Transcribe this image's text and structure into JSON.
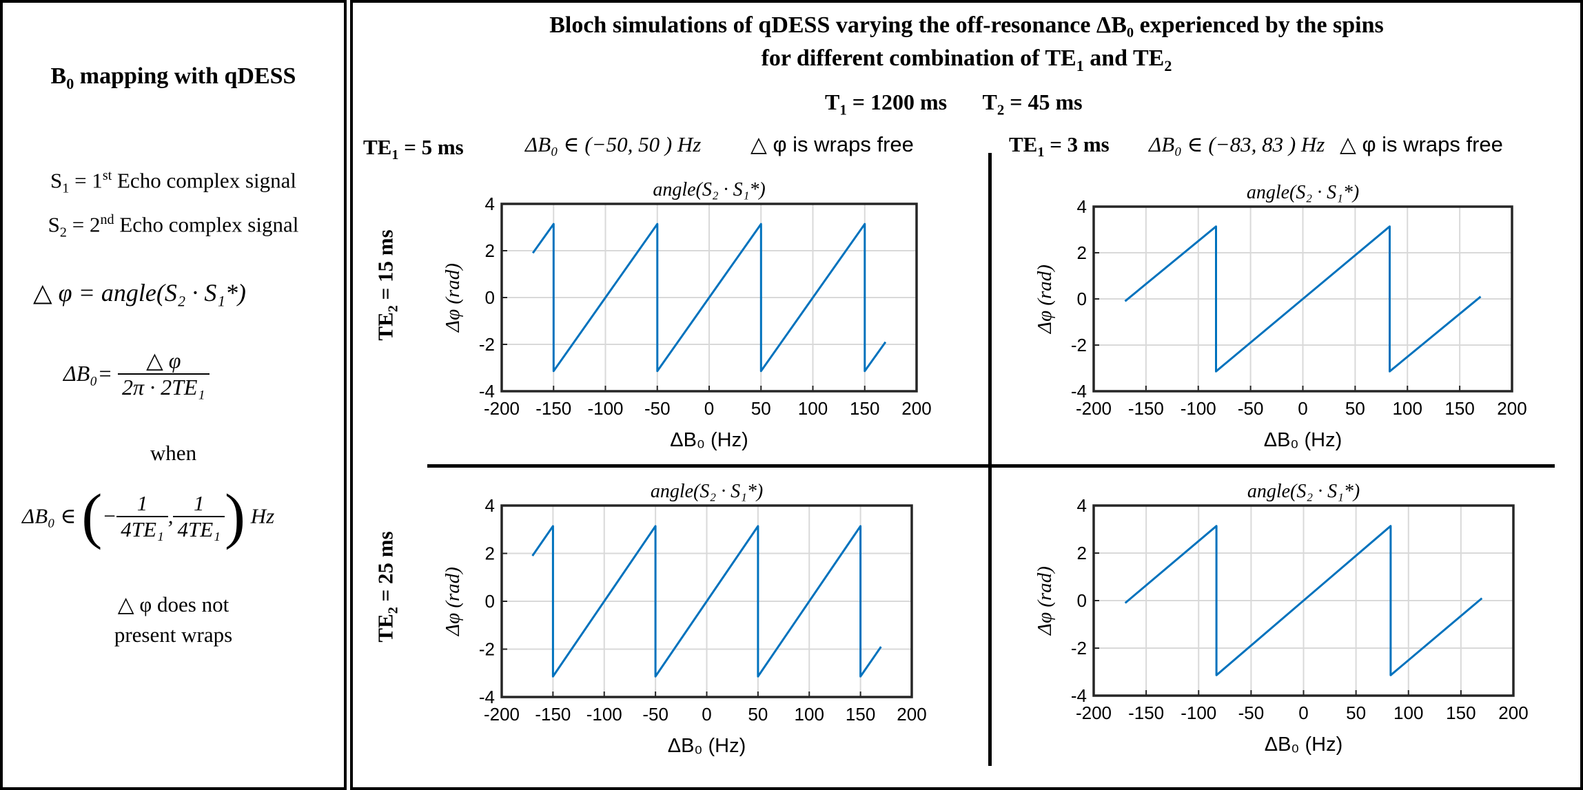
{
  "left": {
    "title_pre": "B",
    "title_sub": "0",
    "title_post": " mapping with qDESS",
    "s1_pre": "S",
    "s1_sub": "1",
    "s1_mid": " = 1",
    "s1_sup": "st",
    "s1_post": " Echo complex signal",
    "s2_pre": "S",
    "s2_sub": "2",
    "s2_mid": " = 2",
    "s2_sup": "nd",
    "s2_post": " Echo complex signal",
    "eq1": "△ φ = angle(S₂ · S₁*)",
    "eq2_lhs": "ΔB₀=",
    "eq2_num": "△ φ",
    "eq2_den": "2π · 2TE₁",
    "when": "when",
    "eq3_lhs": "ΔB₀  ∈",
    "eq3_f1_num": "1",
    "eq3_f1_den": "4TE₁",
    "eq3_f2_num": "1",
    "eq3_f2_den": "4TE₁",
    "eq3_unit": "Hz",
    "note_line1": "△ φ  does not",
    "note_line2": "present wraps"
  },
  "right": {
    "title_line1": "Bloch simulations of qDESS varying the off-resonance ΔB₀ experienced by the spins",
    "title_line2_pre": "for different combination of TE",
    "title_line2_sub1": "1",
    "title_line2_mid": " and TE",
    "title_line2_sub2": "2",
    "params_t1_pre": "T",
    "params_t1_sub": "1",
    "params_t1_post": " = 1200 ms",
    "params_t2_pre": "T",
    "params_t2_sub": "2",
    "params_t2_post": " = 45 ms",
    "col1_te_pre": "TE",
    "col1_te_sub": "1",
    "col1_te_post": " = 5 ms",
    "col1_range": "ΔB₀ ∈ (−50, 50 ) Hz",
    "col1_note": "△ φ is wraps free",
    "col2_te_pre": "TE",
    "col2_te_sub": "1",
    "col2_te_post": " = 3 ms",
    "col2_range": "ΔB₀ ∈ (−83, 83 ) Hz",
    "col2_note": "△ φ is wraps free",
    "row1_label_pre": "TE",
    "row1_label_sub": "2",
    "row1_label_post": " = 15 ms",
    "row2_label_pre": "TE",
    "row2_label_sub": "2",
    "row2_label_post": " = 25 ms"
  },
  "colors": {
    "line": "#0072BD",
    "grid": "#d9d9d9",
    "axis": "#262626"
  },
  "chart_data": [
    {
      "type": "line",
      "id": "te1_5_te2_15",
      "title": "angle(S₂ · S₁*)",
      "xlabel": "ΔB₀ (Hz)",
      "ylabel": "Δφ (rad)",
      "xlim": [
        -200,
        200
      ],
      "ylim": [
        -4,
        4
      ],
      "xticks": [
        -200,
        -150,
        -100,
        -50,
        0,
        50,
        100,
        150,
        200
      ],
      "yticks": [
        -4,
        -2,
        0,
        2,
        4
      ],
      "grid": true,
      "series": [
        {
          "name": "Δφ",
          "x": [
            -170,
            -150,
            -150,
            -50,
            -50,
            50,
            50,
            150,
            150,
            170
          ],
          "y": [
            1.9,
            3.14,
            -3.14,
            3.14,
            -3.14,
            3.14,
            -3.14,
            3.14,
            -3.14,
            -1.9
          ]
        }
      ]
    },
    {
      "type": "line",
      "id": "te1_3_te2_15",
      "title": "angle(S₂ · S₁*)",
      "xlabel": "ΔB₀ (Hz)",
      "ylabel": "Δφ (rad)",
      "xlim": [
        -200,
        200
      ],
      "ylim": [
        -4,
        4
      ],
      "xticks": [
        -200,
        -150,
        -100,
        -50,
        0,
        50,
        100,
        150,
        200
      ],
      "yticks": [
        -4,
        -2,
        0,
        2,
        4
      ],
      "grid": true,
      "series": [
        {
          "name": "Δφ",
          "x": [
            -170,
            -83,
            -83,
            83,
            83,
            170
          ],
          "y": [
            -0.1,
            3.14,
            -3.14,
            3.14,
            -3.14,
            0.1
          ]
        }
      ]
    },
    {
      "type": "line",
      "id": "te1_5_te2_25",
      "title": "angle(S₂ · S₁*)",
      "xlabel": "ΔB₀ (Hz)",
      "ylabel": "Δφ (rad)",
      "xlim": [
        -200,
        200
      ],
      "ylim": [
        -4,
        4
      ],
      "xticks": [
        -200,
        -150,
        -100,
        -50,
        0,
        50,
        100,
        150,
        200
      ],
      "yticks": [
        -4,
        -2,
        0,
        2,
        4
      ],
      "grid": true,
      "series": [
        {
          "name": "Δφ",
          "x": [
            -170,
            -150,
            -150,
            -50,
            -50,
            50,
            50,
            150,
            150,
            170
          ],
          "y": [
            1.9,
            3.14,
            -3.14,
            3.14,
            -3.14,
            3.14,
            -3.14,
            3.14,
            -3.14,
            -1.9
          ]
        }
      ]
    },
    {
      "type": "line",
      "id": "te1_3_te2_25",
      "title": "angle(S₂ · S₁*)",
      "xlabel": "ΔB₀ (Hz)",
      "ylabel": "Δφ (rad)",
      "xlim": [
        -200,
        200
      ],
      "ylim": [
        -4,
        4
      ],
      "xticks": [
        -200,
        -150,
        -100,
        -50,
        0,
        50,
        100,
        150,
        200
      ],
      "yticks": [
        -4,
        -2,
        0,
        2,
        4
      ],
      "grid": true,
      "series": [
        {
          "name": "Δφ",
          "x": [
            -170,
            -83,
            -83,
            83,
            83,
            170
          ],
          "y": [
            -0.1,
            3.14,
            -3.14,
            3.14,
            -3.14,
            0.1
          ]
        }
      ]
    }
  ]
}
